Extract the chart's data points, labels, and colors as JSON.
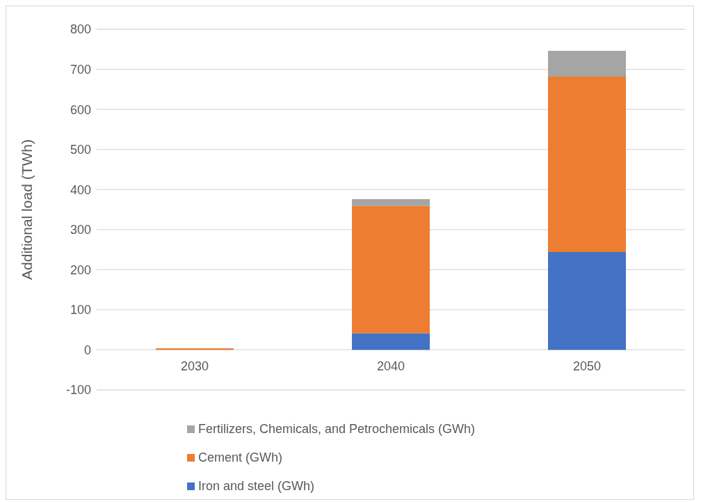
{
  "chart_data": {
    "type": "bar",
    "stacked": true,
    "ylabel": "Additional load (TWh)",
    "categories": [
      "2030",
      "2040",
      "2050"
    ],
    "series": [
      {
        "name": "Iron and steel (GWh)",
        "color": "#4472c4",
        "values": [
          null,
          41,
          244
        ]
      },
      {
        "name": "Cement (GWh)",
        "color": "#ed7d31",
        "values": [
          4,
          318,
          438
        ]
      },
      {
        "name": "Fertilizers, Chemicals, and Petrochemicals (GWh)",
        "color": "#a5a5a5",
        "values": [
          0,
          17,
          64
        ]
      }
    ],
    "ylim": [
      -100,
      800
    ],
    "yticks": [
      -100,
      0,
      100,
      200,
      300,
      400,
      500,
      600,
      700,
      800
    ],
    "grid": "y",
    "legend": "bottom"
  }
}
